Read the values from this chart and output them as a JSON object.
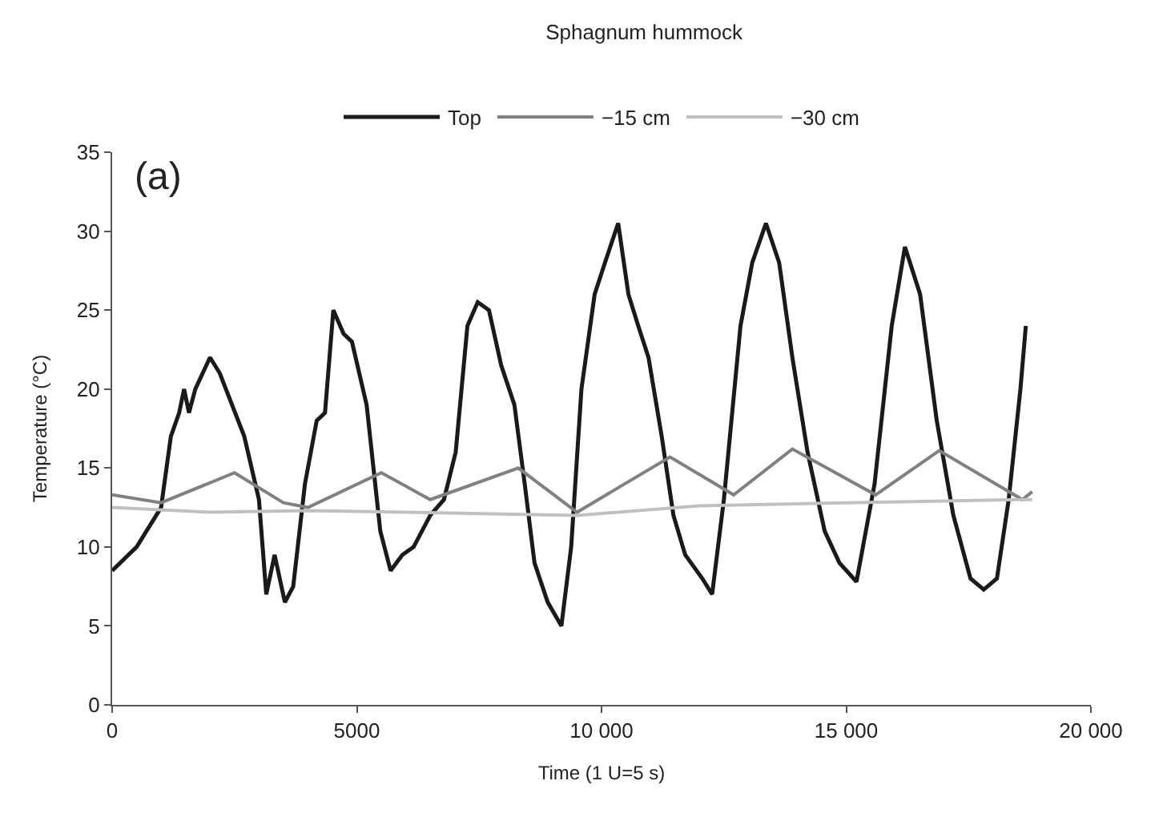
{
  "chart_data": {
    "type": "line",
    "title": "Sphagnum hummock",
    "xlabel": "Time (1 U=5 s)",
    "ylabel": "Temperature (°C)",
    "annotations": [
      "(a)"
    ],
    "xlim": [
      0,
      20000
    ],
    "xticks": [
      0,
      5000,
      {
        "value": 10000,
        "label": "10 000"
      },
      {
        "value": 15000,
        "label": "15 000"
      },
      {
        "value": 20000,
        "label": "20 000"
      }
    ],
    "ylim": [
      0,
      35
    ],
    "yticks": [
      0,
      5,
      10,
      15,
      20,
      25,
      30,
      35
    ],
    "legend": "top",
    "marker": "none",
    "line_style": "solid",
    "series": [
      {
        "name": "Top",
        "color": "#1a1a1a",
        "x": [
          0,
          500,
          1000,
          1200,
          1370,
          1470,
          1570,
          1700,
          2000,
          2200,
          2700,
          3000,
          3150,
          3320,
          3530,
          3700,
          3940,
          4180,
          4350,
          4520,
          4730,
          4900,
          5200,
          5480,
          5690,
          5930,
          6160,
          6500,
          6780,
          7020,
          7260,
          7470,
          7700,
          7950,
          8220,
          8430,
          8630,
          8900,
          9180,
          9380,
          9590,
          9860,
          10070,
          10340,
          10550,
          10750,
          10960,
          11230,
          11470,
          11710,
          12060,
          12260,
          12500,
          12840,
          13080,
          13360,
          13630,
          13900,
          14210,
          14560,
          14860,
          15210,
          15580,
          15930,
          16200,
          16510,
          16850,
          17190,
          17540,
          17810,
          18080,
          18320,
          18560,
          18670
        ],
        "values": [
          8.5,
          10,
          12.5,
          17,
          18.5,
          20,
          18.5,
          20,
          22,
          21,
          17,
          13,
          7,
          9.5,
          6.5,
          7.5,
          14,
          18,
          18.5,
          25,
          23.5,
          23,
          19,
          11,
          8.5,
          9.5,
          10,
          12,
          13,
          16,
          24,
          25.5,
          25,
          21.5,
          19,
          14,
          9,
          6.5,
          5,
          10,
          20,
          26,
          28,
          30.5,
          26,
          24,
          22,
          17,
          12,
          9.5,
          8,
          7,
          13,
          24,
          28,
          30.5,
          28,
          22,
          16,
          11,
          9,
          7.8,
          14,
          24,
          29,
          26,
          18,
          12,
          8,
          7.3,
          8,
          13,
          20,
          24
        ]
      },
      {
        "name": "−15 cm",
        "color": "#808080",
        "x": [
          0,
          1000,
          2500,
          3500,
          4000,
          5500,
          6500,
          8300,
          9500,
          11400,
          12700,
          13900,
          15600,
          16900,
          18600,
          18800
        ],
        "values": [
          13.3,
          12.8,
          14.7,
          12.8,
          12.5,
          14.7,
          13,
          15,
          12.2,
          15.7,
          13.3,
          16.2,
          13.3,
          16.1,
          13,
          13.5
        ]
      },
      {
        "name": "−30 cm",
        "color": "#c0c0c0",
        "x": [
          0,
          2000,
          4000,
          6000,
          9500,
          12000,
          15000,
          18600,
          18800
        ],
        "values": [
          12.5,
          12.2,
          12.3,
          12.2,
          12.0,
          12.6,
          12.8,
          13.0,
          13.0
        ]
      }
    ]
  }
}
